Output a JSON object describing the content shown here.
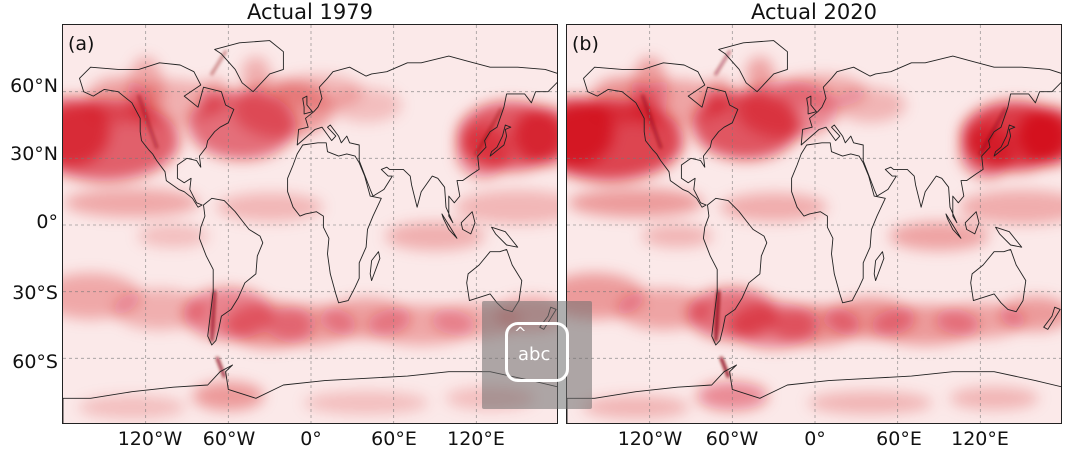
{
  "panels": [
    {
      "title": "Actual 1979",
      "label": "(a)",
      "darkness": 1.0
    },
    {
      "title": "Actual 2020",
      "label": "(b)",
      "darkness": 1.2
    }
  ],
  "lat_labels": [
    "60°N",
    "30°N",
    "0°",
    "30°S",
    "60°S"
  ],
  "lon_labels": [
    "120°W",
    "60°W",
    "0°",
    "60°E",
    "120°E"
  ],
  "colors": {
    "high": "#d00010",
    "low": "#ffffff",
    "coast": "#222222",
    "grid": "#777777"
  },
  "overlay": {
    "icon": "keyboard-input-icon",
    "text": "abc",
    "caret": "^"
  }
}
